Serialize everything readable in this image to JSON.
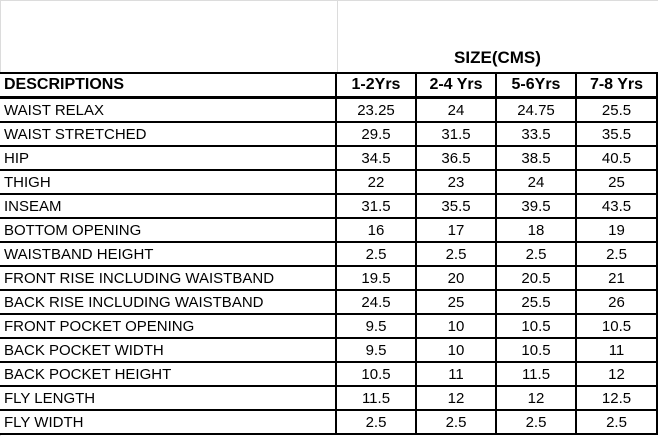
{
  "colors": {
    "background": "#ffffff",
    "table_border": "#000000",
    "gridline": "#dcdcdc",
    "text": "#000000"
  },
  "chart_data": {
    "type": "table",
    "title": "SIZE(CMS)",
    "row_header": "DESCRIPTIONS",
    "columns": [
      "1-2Yrs",
      "2-4 Yrs",
      "5-6Yrs",
      "7-8 Yrs"
    ],
    "rows": [
      {
        "label": "WAIST RELAX",
        "values": [
          "23.25",
          "24",
          "24.75",
          "25.5"
        ]
      },
      {
        "label": "WAIST STRETCHED",
        "values": [
          "29.5",
          "31.5",
          "33.5",
          "35.5"
        ]
      },
      {
        "label": "HIP",
        "values": [
          "34.5",
          "36.5",
          "38.5",
          "40.5"
        ]
      },
      {
        "label": "THIGH",
        "values": [
          "22",
          "23",
          "24",
          "25"
        ]
      },
      {
        "label": "INSEAM",
        "values": [
          "31.5",
          "35.5",
          "39.5",
          "43.5"
        ]
      },
      {
        "label": "BOTTOM OPENING",
        "values": [
          "16",
          "17",
          "18",
          "19"
        ]
      },
      {
        "label": "WAISTBAND HEIGHT",
        "values": [
          "2.5",
          "2.5",
          "2.5",
          "2.5"
        ]
      },
      {
        "label": "FRONT RISE INCLUDING WAISTBAND",
        "values": [
          "19.5",
          "20",
          "20.5",
          "21"
        ]
      },
      {
        "label": "BACK RISE INCLUDING WAISTBAND",
        "values": [
          "24.5",
          "25",
          "25.5",
          "26"
        ]
      },
      {
        "label": "FRONT POCKET OPENING",
        "values": [
          "9.5",
          "10",
          "10.5",
          "10.5"
        ]
      },
      {
        "label": "BACK POCKET WIDTH",
        "values": [
          "9.5",
          "10",
          "10.5",
          "11"
        ]
      },
      {
        "label": "BACK POCKET HEIGHT",
        "values": [
          "10.5",
          "11",
          "11.5",
          "12"
        ]
      },
      {
        "label": "FLY LENGTH",
        "values": [
          "11.5",
          "12",
          "12",
          "12.5"
        ]
      },
      {
        "label": "FLY WIDTH",
        "values": [
          "2.5",
          "2.5",
          "2.5",
          "2.5"
        ]
      }
    ],
    "layout": {
      "grid": "off",
      "legend": "none",
      "title_position": "above-size-columns"
    }
  }
}
